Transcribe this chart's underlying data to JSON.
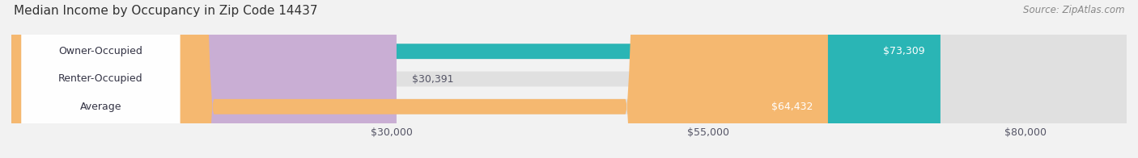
{
  "title": "Median Income by Occupancy in Zip Code 14437",
  "source": "Source: ZipAtlas.com",
  "categories": [
    "Owner-Occupied",
    "Renter-Occupied",
    "Average"
  ],
  "values": [
    73309,
    30391,
    64432
  ],
  "bar_colors": [
    "#2ab5b5",
    "#c9aed4",
    "#f5b870"
  ],
  "bar_labels": [
    "$73,309",
    "$30,391",
    "$64,432"
  ],
  "label_inside": [
    true,
    false,
    true
  ],
  "xmin": 0,
  "xmax": 88000,
  "xticks": [
    30000,
    55000,
    80000
  ],
  "xticklabels": [
    "$30,000",
    "$55,000",
    "$80,000"
  ],
  "title_fontsize": 11,
  "source_fontsize": 8.5,
  "label_fontsize": 9,
  "tick_fontsize": 9,
  "bar_height": 0.55,
  "fig_width": 14.06,
  "fig_height": 1.96
}
